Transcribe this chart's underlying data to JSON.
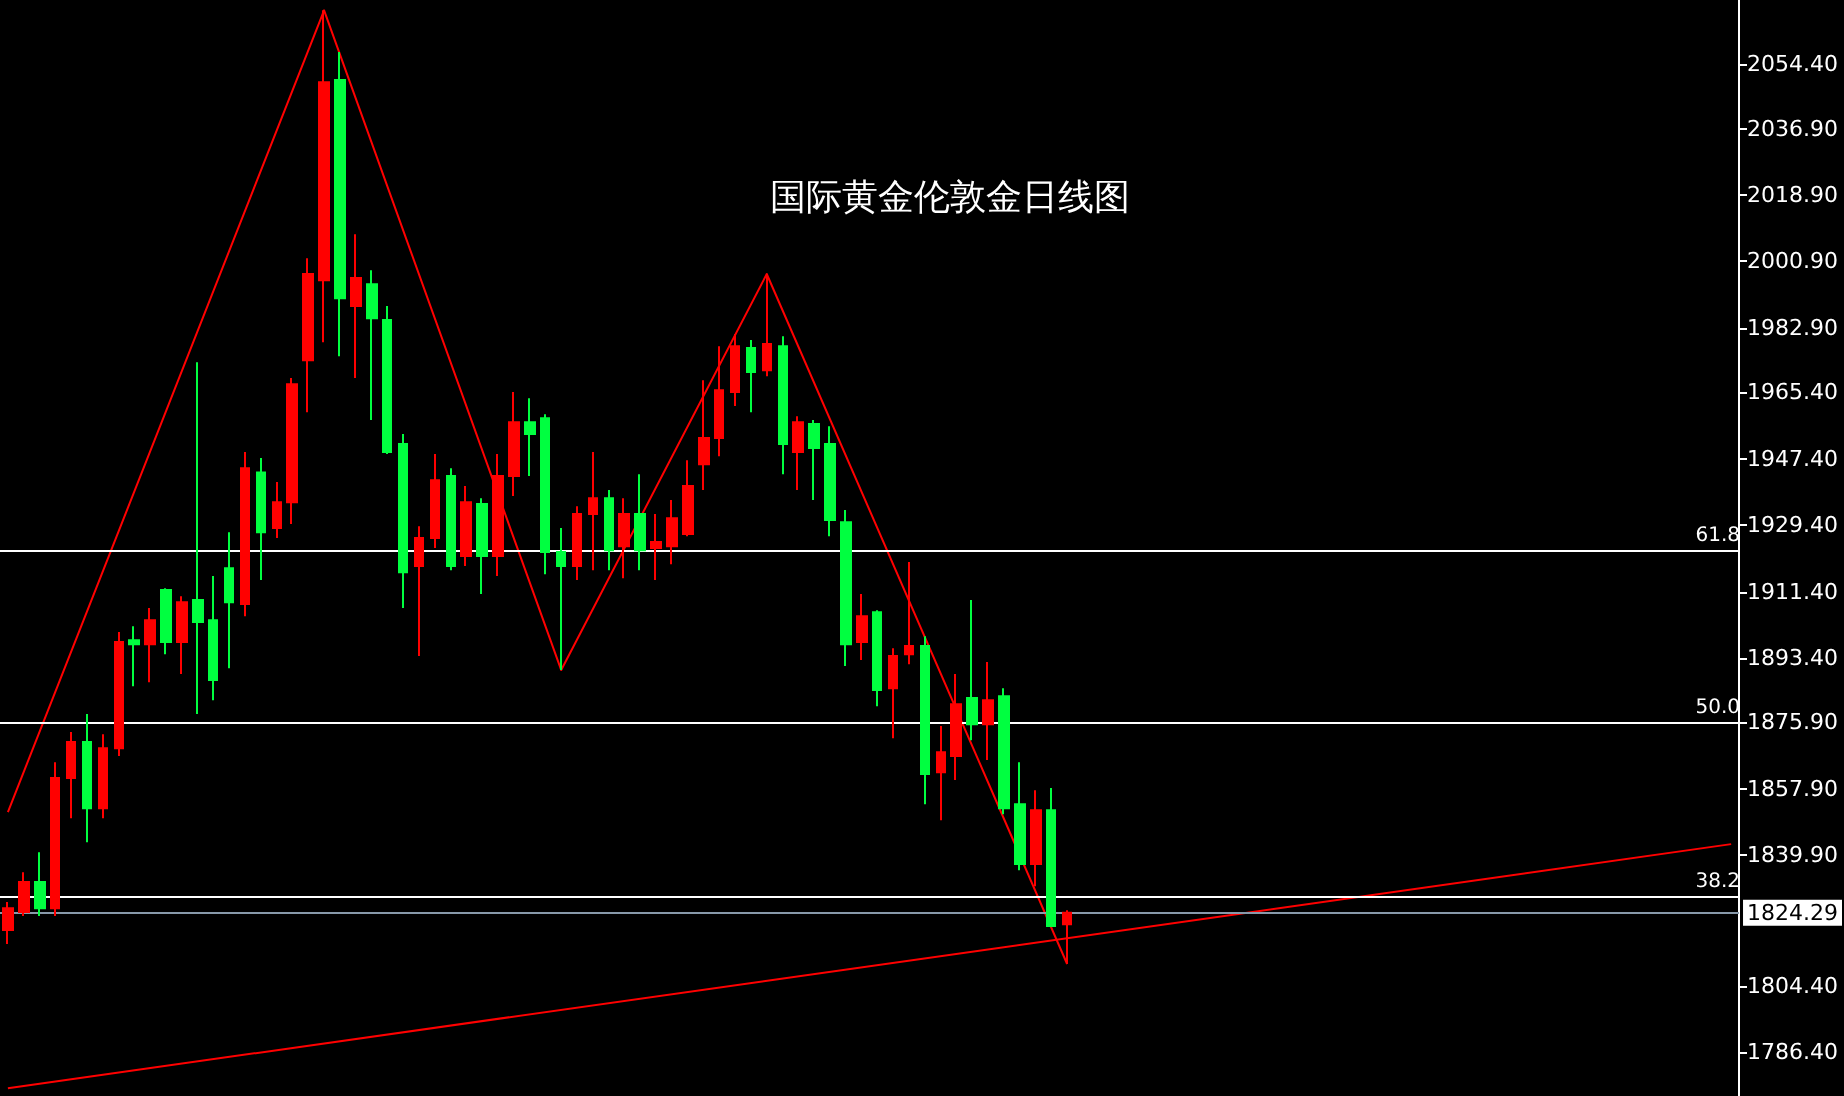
{
  "chart_data": {
    "type": "candlestick",
    "title": "国际黄金伦敦金日线图",
    "categories": [
      null,
      null,
      null,
      null,
      null,
      null,
      null,
      null,
      null,
      null,
      null,
      null,
      null,
      null,
      null,
      null,
      null,
      null,
      null,
      null,
      null,
      null,
      null,
      null,
      null,
      null,
      null,
      null,
      null,
      null,
      null,
      null,
      null,
      null,
      null,
      null,
      null,
      null,
      null,
      null,
      null,
      null,
      null,
      null,
      null,
      null,
      null,
      null,
      null,
      null,
      null,
      null,
      null,
      null,
      null,
      null,
      null,
      null,
      null,
      null,
      null,
      null,
      null,
      null,
      null,
      null,
      null,
      null,
      null,
      null,
      null,
      null,
      null,
      null,
      null,
      null,
      null,
      null,
      null,
      null,
      null,
      null,
      null,
      null,
      null,
      null,
      null,
      null,
      null,
      null,
      null,
      null,
      null,
      null,
      null,
      null,
      null,
      null,
      null,
      null,
      null,
      null,
      null,
      null,
      null,
      null,
      null,
      null,
      null,
      null
    ],
    "ohlc": [
      [
        1819.6,
        1827.2,
        1815.8,
        1825.5
      ],
      [
        1824.5,
        1835.3,
        1823.4,
        1832.6
      ],
      [
        1832.6,
        1840.7,
        1823.4,
        1825.5
      ],
      [
        1825.5,
        1865.1,
        1823.4,
        1860.8
      ],
      [
        1860.8,
        1873.3,
        1849.9,
        1870.6
      ],
      [
        1870.6,
        1878.2,
        1843.4,
        1852.6
      ],
      [
        1852.6,
        1872.7,
        1849.9,
        1868.9
      ],
      [
        1868.9,
        1900.4,
        1866.8,
        1897.7
      ],
      [
        1898.2,
        1902.0,
        1885.7,
        1897.1
      ],
      [
        1897.1,
        1906.9,
        1886.8,
        1903.6
      ],
      [
        1911.8,
        1912.3,
        1894.4,
        1897.7
      ],
      [
        1897.7,
        1910.1,
        1889.0,
        1908.5
      ],
      [
        1909.1,
        1973.6,
        1878.2,
        1903.1
      ],
      [
        1903.6,
        1915.6,
        1881.9,
        1887.4
      ],
      [
        1917.7,
        1927.5,
        1890.6,
        1908.5
      ],
      [
        1908.0,
        1949.2,
        1904.7,
        1944.8
      ],
      [
        1943.7,
        1947.6,
        1914.5,
        1927.5
      ],
      [
        1928.6,
        1941.1,
        1925.9,
        1935.6
      ],
      [
        1935.6,
        1969.3,
        1929.7,
        1967.6
      ],
      [
        1974.1,
        2001.8,
        1960.0,
        1997.5
      ],
      [
        1995.8,
        2069.0,
        1979.0,
        2049.5
      ],
      [
        2050.1,
        2057.7,
        1975.2,
        1990.9
      ],
      [
        1988.8,
        2008.3,
        1969.3,
        1996.4
      ],
      [
        1994.7,
        1998.5,
        1957.9,
        1985.5
      ],
      [
        1985.0,
        1988.8,
        1948.7,
        1949.2
      ],
      [
        1951.4,
        1954.1,
        1906.9,
        1916.6
      ],
      [
        1918.3,
        1929.1,
        1893.9,
        1925.9
      ],
      [
        1925.9,
        1948.7,
        1923.2,
        1941.6
      ],
      [
        1942.7,
        1944.8,
        1917.2,
        1918.3
      ],
      [
        1921.0,
        1940.0,
        1918.3,
        1935.6
      ],
      [
        1935.1,
        1936.7,
        1910.7,
        1921.0
      ],
      [
        1921.0,
        1948.7,
        1915.6,
        1942.7
      ],
      [
        1942.7,
        1965.5,
        1937.3,
        1957.3
      ],
      [
        1957.3,
        1963.8,
        1942.7,
        1954.1
      ],
      [
        1958.4,
        1959.5,
        1916.1,
        1922.1
      ],
      [
        1922.1,
        1928.6,
        1890.1,
        1918.3
      ],
      [
        1918.3,
        1934.5,
        1914.5,
        1932.4
      ],
      [
        1932.4,
        1949.2,
        1917.2,
        1936.7
      ],
      [
        1936.7,
        1938.9,
        1917.2,
        1922.6
      ],
      [
        1923.7,
        1936.7,
        1915.0,
        1932.4
      ],
      [
        1932.4,
        1943.2,
        1917.2,
        1922.6
      ],
      [
        1923.2,
        1932.4,
        1914.5,
        1924.8
      ],
      [
        1923.7,
        1936.2,
        1918.8,
        1931.3
      ],
      [
        1927.0,
        1947.0,
        1926.4,
        1940.0
      ],
      [
        1945.9,
        1968.7,
        1938.9,
        1953.0
      ],
      [
        1953.0,
        1977.9,
        1948.1,
        1966.0
      ],
      [
        1965.5,
        1981.2,
        1961.7,
        1977.9
      ],
      [
        1977.4,
        1979.6,
        1960.0,
        1970.9
      ],
      [
        1971.4,
        1997.5,
        1969.8,
        1978.5
      ],
      [
        1977.9,
        1980.6,
        1943.2,
        1951.4
      ],
      [
        1949.2,
        1958.9,
        1938.9,
        1957.3
      ],
      [
        1956.8,
        1957.9,
        1936.2,
        1950.3
      ],
      [
        1951.4,
        1956.2,
        1926.4,
        1930.8
      ],
      [
        1930.2,
        1933.5,
        1891.2,
        1897.1
      ],
      [
        1897.7,
        1910.7,
        1892.8,
        1904.7
      ],
      [
        1905.8,
        1906.3,
        1880.3,
        1884.7
      ],
      [
        1885.2,
        1896.0,
        1871.6,
        1893.9
      ],
      [
        1894.4,
        1919.4,
        1891.7,
        1896.6
      ],
      [
        1896.6,
        1899.3,
        1853.7,
        1861.9
      ],
      [
        1862.4,
        1874.9,
        1849.4,
        1867.8
      ],
      [
        1866.8,
        1889.0,
        1860.3,
        1880.8
      ],
      [
        1882.5,
        1909.1,
        1871.1,
        1875.4
      ],
      [
        1875.4,
        1892.3,
        1865.7,
        1881.9
      ],
      [
        1883.0,
        1885.2,
        1851.0,
        1852.6
      ],
      [
        1853.7,
        1865.1,
        1835.8,
        1837.5
      ],
      [
        1837.5,
        1857.5,
        1831.5,
        1852.1
      ],
      [
        1852.1,
        1858.1,
        1820.7,
        1820.7
      ],
      [
        1821.2,
        1825.0,
        1810.4,
        1824.3
      ],
      null,
      null,
      null,
      null,
      null,
      null,
      null,
      null,
      null,
      null,
      null,
      null,
      null,
      null,
      null,
      null,
      null,
      null,
      null,
      null,
      null,
      null,
      null,
      null,
      null,
      null,
      null,
      null,
      null,
      null,
      null,
      null,
      null,
      null,
      null,
      null,
      null,
      null,
      null,
      null,
      null,
      null
    ],
    "colors": [
      "#ff0000",
      "#ff0000",
      "#00ff40",
      "#ff0000",
      "#ff0000",
      "#00ff40",
      "#ff0000",
      "#ff0000",
      "#00ff40",
      "#ff0000",
      "#00ff40",
      "#ff0000",
      "#00ff40",
      "#00ff40",
      "#00ff40",
      "#ff0000",
      "#00ff40",
      "#ff0000",
      "#ff0000",
      "#ff0000",
      "#ff0000",
      "#00ff40",
      "#ff0000",
      "#00ff40",
      "#00ff40",
      "#00ff40",
      "#ff0000",
      "#ff0000",
      "#00ff40",
      "#ff0000",
      "#00ff40",
      "#ff0000",
      "#ff0000",
      "#00ff40",
      "#00ff40",
      "#00ff40",
      "#ff0000",
      "#ff0000",
      "#00ff40",
      "#ff0000",
      "#00ff40",
      "#ff0000",
      "#ff0000",
      "#ff0000",
      "#ff0000",
      "#ff0000",
      "#ff0000",
      "#00ff40",
      "#ff0000",
      "#00ff40",
      "#ff0000",
      "#00ff40",
      "#00ff40",
      "#00ff40",
      "#ff0000",
      "#00ff40",
      "#ff0000",
      "#ff0000",
      "#00ff40",
      "#ff0000",
      "#ff0000",
      "#00ff40",
      "#ff0000",
      "#00ff40",
      "#00ff40",
      "#ff0000",
      "#00ff40",
      "#ff0000",
      null,
      null,
      null,
      null,
      null,
      null,
      null,
      null,
      null,
      null,
      null,
      null,
      null,
      null,
      null,
      null,
      null,
      null,
      null,
      null,
      null,
      null,
      null,
      null,
      null,
      null,
      null,
      null,
      null,
      null,
      null,
      null,
      null,
      null,
      null,
      null,
      null,
      null,
      null,
      null,
      null,
      null
    ],
    "series": [
      {
        "type": "line",
        "color": "#ff0000",
        "values": [
          1851.6,
          null,
          null,
          null,
          null,
          null,
          null,
          null,
          null,
          null,
          null,
          null,
          null,
          null,
          null,
          null,
          null,
          null,
          null,
          null,
          2069.0,
          null,
          null,
          null,
          null,
          null,
          null,
          null,
          null,
          null,
          null,
          null,
          null,
          null,
          null,
          1890.1,
          null,
          null,
          null,
          null,
          null,
          null,
          null,
          null,
          null,
          null,
          null,
          null,
          1997.5,
          null,
          null,
          null,
          null,
          null,
          null,
          null,
          null,
          null,
          null,
          null,
          null,
          null,
          null,
          null,
          null,
          null,
          null,
          1810.4,
          null,
          null,
          null,
          null,
          null,
          null,
          null,
          null,
          null,
          null,
          null,
          null,
          null,
          null,
          null,
          null,
          null,
          null,
          null,
          null,
          null,
          null,
          null,
          null,
          null,
          null,
          null,
          null,
          null,
          null,
          null,
          null,
          null,
          null,
          null,
          null,
          null,
          null,
          null,
          null,
          null,
          null
        ]
      },
      {
        "type": "line",
        "color": "#ff0000",
        "values": [
          1776.7,
          null,
          null,
          null,
          null,
          null,
          null,
          null,
          null,
          null,
          null,
          null,
          null,
          null,
          null,
          null,
          null,
          null,
          null,
          null,
          null,
          null,
          null,
          null,
          null,
          null,
          null,
          null,
          null,
          null,
          null,
          null,
          null,
          null,
          null,
          null,
          null,
          null,
          null,
          null,
          null,
          null,
          null,
          null,
          null,
          null,
          null,
          null,
          null,
          null,
          null,
          null,
          null,
          null,
          null,
          null,
          null,
          null,
          null,
          null,
          null,
          null,
          null,
          null,
          null,
          null,
          null,
          null,
          null,
          null,
          null,
          null,
          null,
          null,
          null,
          null,
          null,
          null,
          null,
          null,
          null,
          null,
          null,
          null,
          null,
          null,
          null,
          null,
          null,
          null,
          null,
          null,
          null,
          null,
          null,
          null,
          null,
          null,
          null,
          null,
          null,
          null,
          null,
          null,
          null,
          null,
          null,
          null,
          null,
          1842.9
        ]
      }
    ],
    "ylim": [
      1774.6,
      2071.8
    ],
    "yticks": [
      {
        "value": 1786.4,
        "label": "1786.40"
      },
      {
        "value": 1804.4,
        "label": "1804.40"
      },
      {
        "value": 1839.9,
        "label": "1839.90"
      },
      {
        "value": 1857.9,
        "label": "1857.90"
      },
      {
        "value": 1875.9,
        "label": "1875.90"
      },
      {
        "value": 1893.4,
        "label": "1893.40"
      },
      {
        "value": 1911.4,
        "label": "1911.40"
      },
      {
        "value": 1929.4,
        "label": "1929.40"
      },
      {
        "value": 1947.4,
        "label": "1947.40"
      },
      {
        "value": 1965.4,
        "label": "1965.40"
      },
      {
        "value": 1982.9,
        "label": "1982.90"
      },
      {
        "value": 2000.9,
        "label": "2000.90"
      },
      {
        "value": 2018.9,
        "label": "2018.90"
      },
      {
        "value": 2036.9,
        "label": "2036.90"
      },
      {
        "value": 2054.4,
        "label": "2054.40"
      }
    ],
    "ref_lines": [
      {
        "axis": "y",
        "value": 1922.6,
        "color": "#ffffff"
      },
      {
        "axis": "y",
        "value": 1876.0,
        "color": "#ffffff"
      },
      {
        "axis": "y",
        "value": 1828.8,
        "color": "#ffffff"
      },
      {
        "axis": "y",
        "value": 1824.29,
        "label": "1824.29",
        "color": "#8899aa"
      }
    ],
    "annotations": [
      {
        "text": "61.8",
        "y": 1922.6
      },
      {
        "text": "50.0",
        "y": 1876.0
      },
      {
        "text": "38.2",
        "y": 1828.8
      }
    ],
    "grid": false,
    "line_style": "solid"
  }
}
